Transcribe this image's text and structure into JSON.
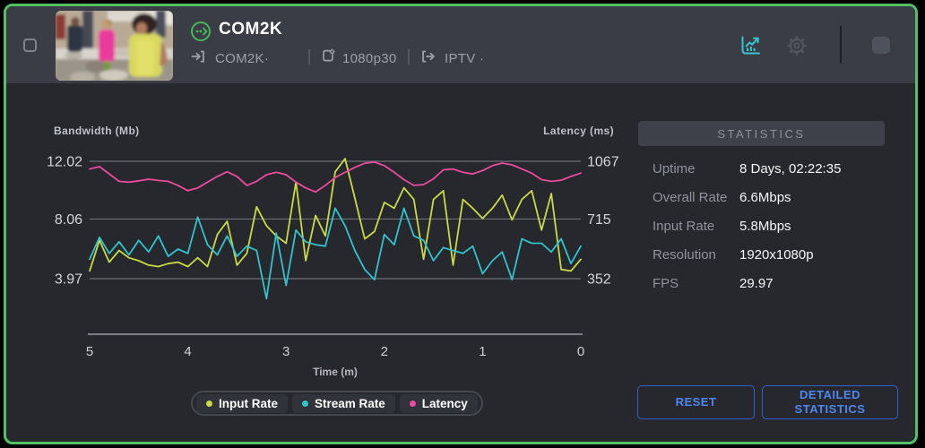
{
  "header": {
    "title": "COM2K",
    "input_name": "COM2K·",
    "profile": "1080p30",
    "output_name": "IPTV ·",
    "thumbnail_label": "stream-preview",
    "icons": {
      "status": "stream-status-icon",
      "input": "input-source-icon",
      "encode": "encoder-profile-icon",
      "output": "output-destination-icon",
      "chart": "chart-stats-icon",
      "settings": "gear-icon",
      "stop": "stop-square-icon"
    }
  },
  "stats": {
    "title": "STATISTICS",
    "rows": [
      {
        "label": "Uptime",
        "value": "8 Days, 02:22:35"
      },
      {
        "label": "Overall Rate",
        "value": "6.6Mbps"
      },
      {
        "label": "Input Rate",
        "value": "5.8Mbps"
      },
      {
        "label": "Resolution",
        "value": "1920x1080p"
      },
      {
        "label": "FPS",
        "value": "29.97"
      }
    ]
  },
  "buttons": {
    "reset": "RESET",
    "detailed": "DETAILED STATISTICS"
  },
  "colors": {
    "border_green": "#52c065",
    "accent_teal": "#38c5ce",
    "button_blue": "#4d87ef",
    "header_bg": "#3a3d45",
    "body_bg": "#26282e"
  },
  "chart_data": {
    "type": "line",
    "xlabel": "Time (m)",
    "x_ticks": [
      5,
      4,
      3,
      2,
      1,
      0
    ],
    "left_axis": {
      "label": "Bandwidth (Mb)",
      "ticks": [
        12.02,
        8.06,
        3.97
      ]
    },
    "right_axis": {
      "label": "Latency (ms)",
      "ticks": [
        1067,
        715,
        352
      ]
    },
    "series": [
      {
        "name": "Input Rate",
        "color": "#c9da45",
        "axis": "left",
        "values": [
          4.5,
          6.6,
          5.1,
          5.9,
          5.4,
          5.2,
          4.9,
          4.8,
          5.0,
          5.1,
          4.8,
          5.4,
          4.8,
          7.0,
          7.9,
          4.9,
          5.7,
          8.9,
          7.6,
          6.9,
          6.4,
          10.6,
          5.2,
          8.3,
          6.9,
          11.3,
          12.2,
          9.5,
          6.7,
          7.2,
          9.2,
          8.8,
          10.2,
          9.4,
          5.3,
          9.4,
          10.0,
          4.9,
          9.4,
          8.8,
          8.1,
          8.8,
          9.7,
          8.0,
          9.4,
          10.0,
          7.3,
          9.8,
          4.6,
          4.5,
          5.3
        ]
      },
      {
        "name": "Stream Rate",
        "color": "#32c3cd",
        "axis": "left",
        "values": [
          5.3,
          6.8,
          5.7,
          6.5,
          5.6,
          6.6,
          5.8,
          6.9,
          5.5,
          6.0,
          5.7,
          8.2,
          6.3,
          5.6,
          6.9,
          5.5,
          6.2,
          5.9,
          2.6,
          7.1,
          3.5,
          7.3,
          6.5,
          6.3,
          6.2,
          8.8,
          7.6,
          5.9,
          4.6,
          3.9,
          7.0,
          6.3,
          8.8,
          6.9,
          6.6,
          5.2,
          6.1,
          5.9,
          5.7,
          6.2,
          4.3,
          5.2,
          5.8,
          3.9,
          6.7,
          6.4,
          6.4,
          5.8,
          6.7,
          5.0,
          6.2
        ]
      },
      {
        "name": "Latency",
        "color": "#ea4b9d",
        "axis": "right",
        "values": [
          1020,
          1034,
          990,
          945,
          940,
          948,
          958,
          950,
          945,
          920,
          888,
          905,
          940,
          975,
          1003,
          975,
          920,
          945,
          985,
          1000,
          985,
          940,
          905,
          880,
          920,
          968,
          1000,
          1030,
          1055,
          1062,
          1040,
          1000,
          955,
          920,
          925,
          960,
          1015,
          1020,
          1000,
          990,
          1010,
          1040,
          1056,
          1045,
          1020,
          995,
          955,
          945,
          952,
          975,
          995
        ]
      }
    ]
  }
}
